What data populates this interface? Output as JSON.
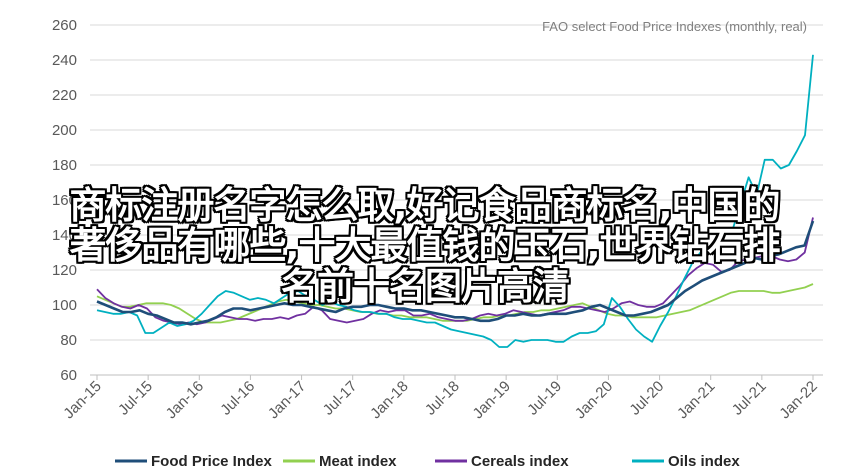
{
  "overlay": {
    "line1": "商标注册名字怎么取,好记食品商标名,中国的",
    "line2": "著侈品有哪些,十大最值钱的玉石,世界钻石排",
    "line3": "名前十名图片高清"
  },
  "chart_data": {
    "type": "line",
    "title": "FAO select Food Price Indexes (monthly, real)",
    "xlabel": "",
    "ylabel": "",
    "ylim": [
      60,
      260
    ],
    "yticks": [
      60,
      80,
      100,
      120,
      140,
      160,
      180,
      200,
      220,
      240,
      260
    ],
    "grid": "horizontal",
    "legend_position": "bottom",
    "x_tick_labels": [
      "Jan-15",
      "Jul-15",
      "Jan-16",
      "Jul-16",
      "Jan-17",
      "Jul-17",
      "Jan-18",
      "Jul-18",
      "Jan-19",
      "Jul-19",
      "Jan-20",
      "Jul-20",
      "Jan-21",
      "Jul-21",
      "Jan-22"
    ],
    "series": [
      {
        "name": "Food Price Index",
        "color": "#1f4e79",
        "values": [
          102,
          100,
          98,
          96,
          96,
          97,
          95,
          94,
          92,
          90,
          90,
          89,
          90,
          91,
          93,
          96,
          98,
          98,
          97,
          98,
          99,
          100,
          101,
          100,
          100,
          99,
          98,
          97,
          96,
          98,
          99,
          99,
          100,
          100,
          99,
          98,
          98,
          97,
          97,
          96,
          95,
          94,
          93,
          93,
          92,
          91,
          91,
          92,
          94,
          94,
          95,
          94,
          94,
          95,
          95,
          95,
          96,
          97,
          99,
          100,
          98,
          96,
          94,
          94,
          95,
          96,
          98,
          100,
          104,
          108,
          111,
          114,
          116,
          118,
          120,
          122,
          124,
          127,
          126,
          128,
          129,
          131,
          133,
          134,
          148
        ]
      },
      {
        "name": "Meat index",
        "color": "#92d050",
        "values": [
          105,
          103,
          101,
          99,
          99,
          100,
          101,
          101,
          101,
          100,
          98,
          95,
          92,
          90,
          90,
          90,
          91,
          92,
          94,
          96,
          98,
          100,
          102,
          103,
          102,
          101,
          100,
          100,
          99,
          98,
          98,
          97,
          96,
          96,
          95,
          95,
          94,
          94,
          93,
          93,
          93,
          92,
          91,
          91,
          91,
          91,
          92,
          93,
          93,
          94,
          94,
          95,
          96,
          96,
          97,
          97,
          98,
          99,
          100,
          101,
          99,
          97,
          95,
          94,
          94,
          93,
          93,
          93,
          93,
          94,
          95,
          96,
          97,
          99,
          101,
          103,
          105,
          107,
          108,
          108,
          108,
          108,
          107,
          107,
          108,
          109,
          110,
          112
        ]
      },
      {
        "name": "Cereals index",
        "color": "#7030a0",
        "values": [
          109,
          104,
          101,
          99,
          98,
          100,
          98,
          93,
          91,
          90,
          89,
          90,
          89,
          90,
          92,
          94,
          93,
          92,
          92,
          91,
          92,
          92,
          93,
          92,
          94,
          95,
          99,
          97,
          92,
          91,
          90,
          91,
          92,
          95,
          97,
          96,
          97,
          97,
          94,
          94,
          95,
          93,
          92,
          91,
          91,
          92,
          94,
          95,
          94,
          95,
          97,
          96,
          95,
          94,
          95,
          96,
          97,
          99,
          99,
          98,
          97,
          96,
          98,
          101,
          102,
          100,
          99,
          99,
          101,
          106,
          111,
          117,
          121,
          124,
          123,
          119,
          120,
          125,
          126,
          127,
          128,
          128,
          126,
          125,
          126,
          130,
          150
        ]
      },
      {
        "name": "Oils index",
        "color": "#00b0c0",
        "values": [
          97,
          96,
          95,
          95,
          96,
          94,
          84,
          84,
          87,
          90,
          88,
          89,
          91,
          95,
          100,
          105,
          108,
          107,
          105,
          103,
          104,
          103,
          101,
          104,
          107,
          108,
          105,
          103,
          100,
          102,
          100,
          99,
          97,
          96,
          96,
          95,
          95,
          93,
          92,
          92,
          91,
          90,
          90,
          88,
          86,
          85,
          84,
          83,
          82,
          80,
          76,
          76,
          80,
          79,
          80,
          80,
          80,
          79,
          79,
          82,
          84,
          84,
          85,
          89,
          104,
          99,
          92,
          86,
          82,
          79,
          88,
          96,
          105,
          115,
          124,
          130,
          131,
          134,
          140,
          143,
          158,
          173,
          163,
          183,
          183,
          178,
          180,
          188,
          197,
          243
        ]
      }
    ]
  }
}
